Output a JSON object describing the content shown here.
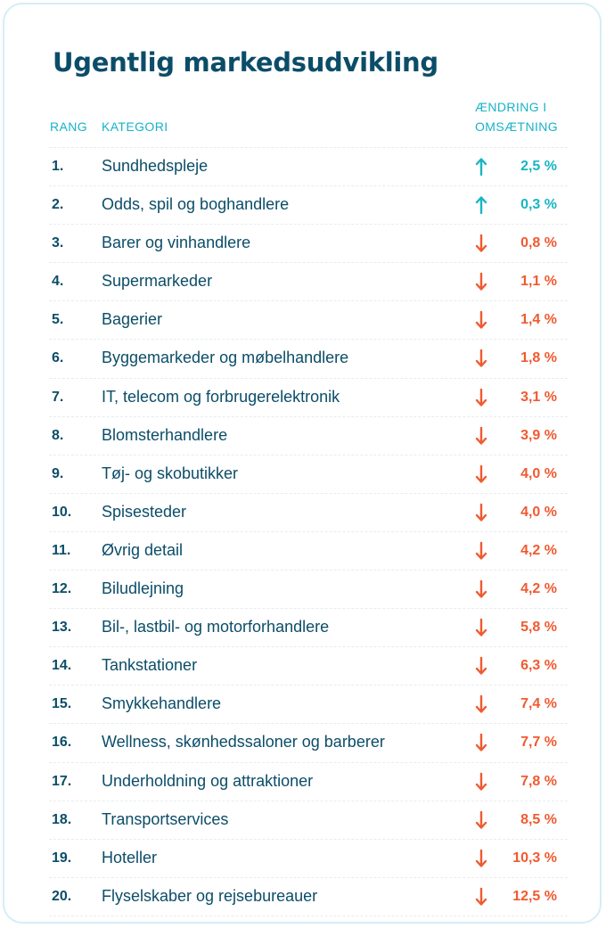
{
  "title": "Ugentlig markedsudvikling",
  "headers": {
    "rank": "RANG",
    "category": "KATEGORI",
    "change_line1": "ÆNDRING I",
    "change_line2": "OMSÆTNING"
  },
  "colors": {
    "title": "#0b4d68",
    "header": "#17b2c8",
    "up": "#18b5c3",
    "down": "#f05a30"
  },
  "chart_data": {
    "type": "table",
    "title": "Ugentlig markedsudvikling",
    "columns": [
      "RANG",
      "KATEGORI",
      "ÆNDRING I OMSÆTNING"
    ],
    "rows": [
      {
        "rank": "1.",
        "category": "Sundhedspleje",
        "direction": "up",
        "value": "2,5 %"
      },
      {
        "rank": "2.",
        "category": "Odds, spil og boghandlere",
        "direction": "up",
        "value": "0,3 %"
      },
      {
        "rank": "3.",
        "category": "Barer og vinhandlere",
        "direction": "down",
        "value": "0,8 %"
      },
      {
        "rank": "4.",
        "category": "Supermarkeder",
        "direction": "down",
        "value": "1,1 %"
      },
      {
        "rank": "5.",
        "category": "Bagerier",
        "direction": "down",
        "value": "1,4 %"
      },
      {
        "rank": "6.",
        "category": "Byggemarkeder og møbelhandlere",
        "direction": "down",
        "value": "1,8 %"
      },
      {
        "rank": "7.",
        "category": "IT, telecom og forbrugerelektronik",
        "direction": "down",
        "value": "3,1 %"
      },
      {
        "rank": "8.",
        "category": "Blomsterhandlere",
        "direction": "down",
        "value": "3,9 %"
      },
      {
        "rank": "9.",
        "category": "Tøj- og skobutikker",
        "direction": "down",
        "value": "4,0 %"
      },
      {
        "rank": "10.",
        "category": "Spisesteder",
        "direction": "down",
        "value": "4,0 %"
      },
      {
        "rank": "11.",
        "category": "Øvrig detail",
        "direction": "down",
        "value": "4,2 %"
      },
      {
        "rank": "12.",
        "category": "Biludlejning",
        "direction": "down",
        "value": "4,2 %"
      },
      {
        "rank": "13.",
        "category": "Bil-, lastbil- og motorforhandlere",
        "direction": "down",
        "value": "5,8 %"
      },
      {
        "rank": "14.",
        "category": "Tankstationer",
        "direction": "down",
        "value": "6,3 %"
      },
      {
        "rank": "15.",
        "category": "Smykkehandlere",
        "direction": "down",
        "value": "7,4 %"
      },
      {
        "rank": "16.",
        "category": "Wellness, skønhedssaloner og barberer",
        "direction": "down",
        "value": "7,7 %"
      },
      {
        "rank": "17.",
        "category": "Underholdning og attraktioner",
        "direction": "down",
        "value": "7,8 %"
      },
      {
        "rank": "18.",
        "category": "Transportservices",
        "direction": "down",
        "value": "8,5 %"
      },
      {
        "rank": "19.",
        "category": "Hoteller",
        "direction": "down",
        "value": "10,3 %"
      },
      {
        "rank": "20.",
        "category": "Flyselskaber og rejsebureauer",
        "direction": "down",
        "value": "12,5 %"
      }
    ]
  }
}
